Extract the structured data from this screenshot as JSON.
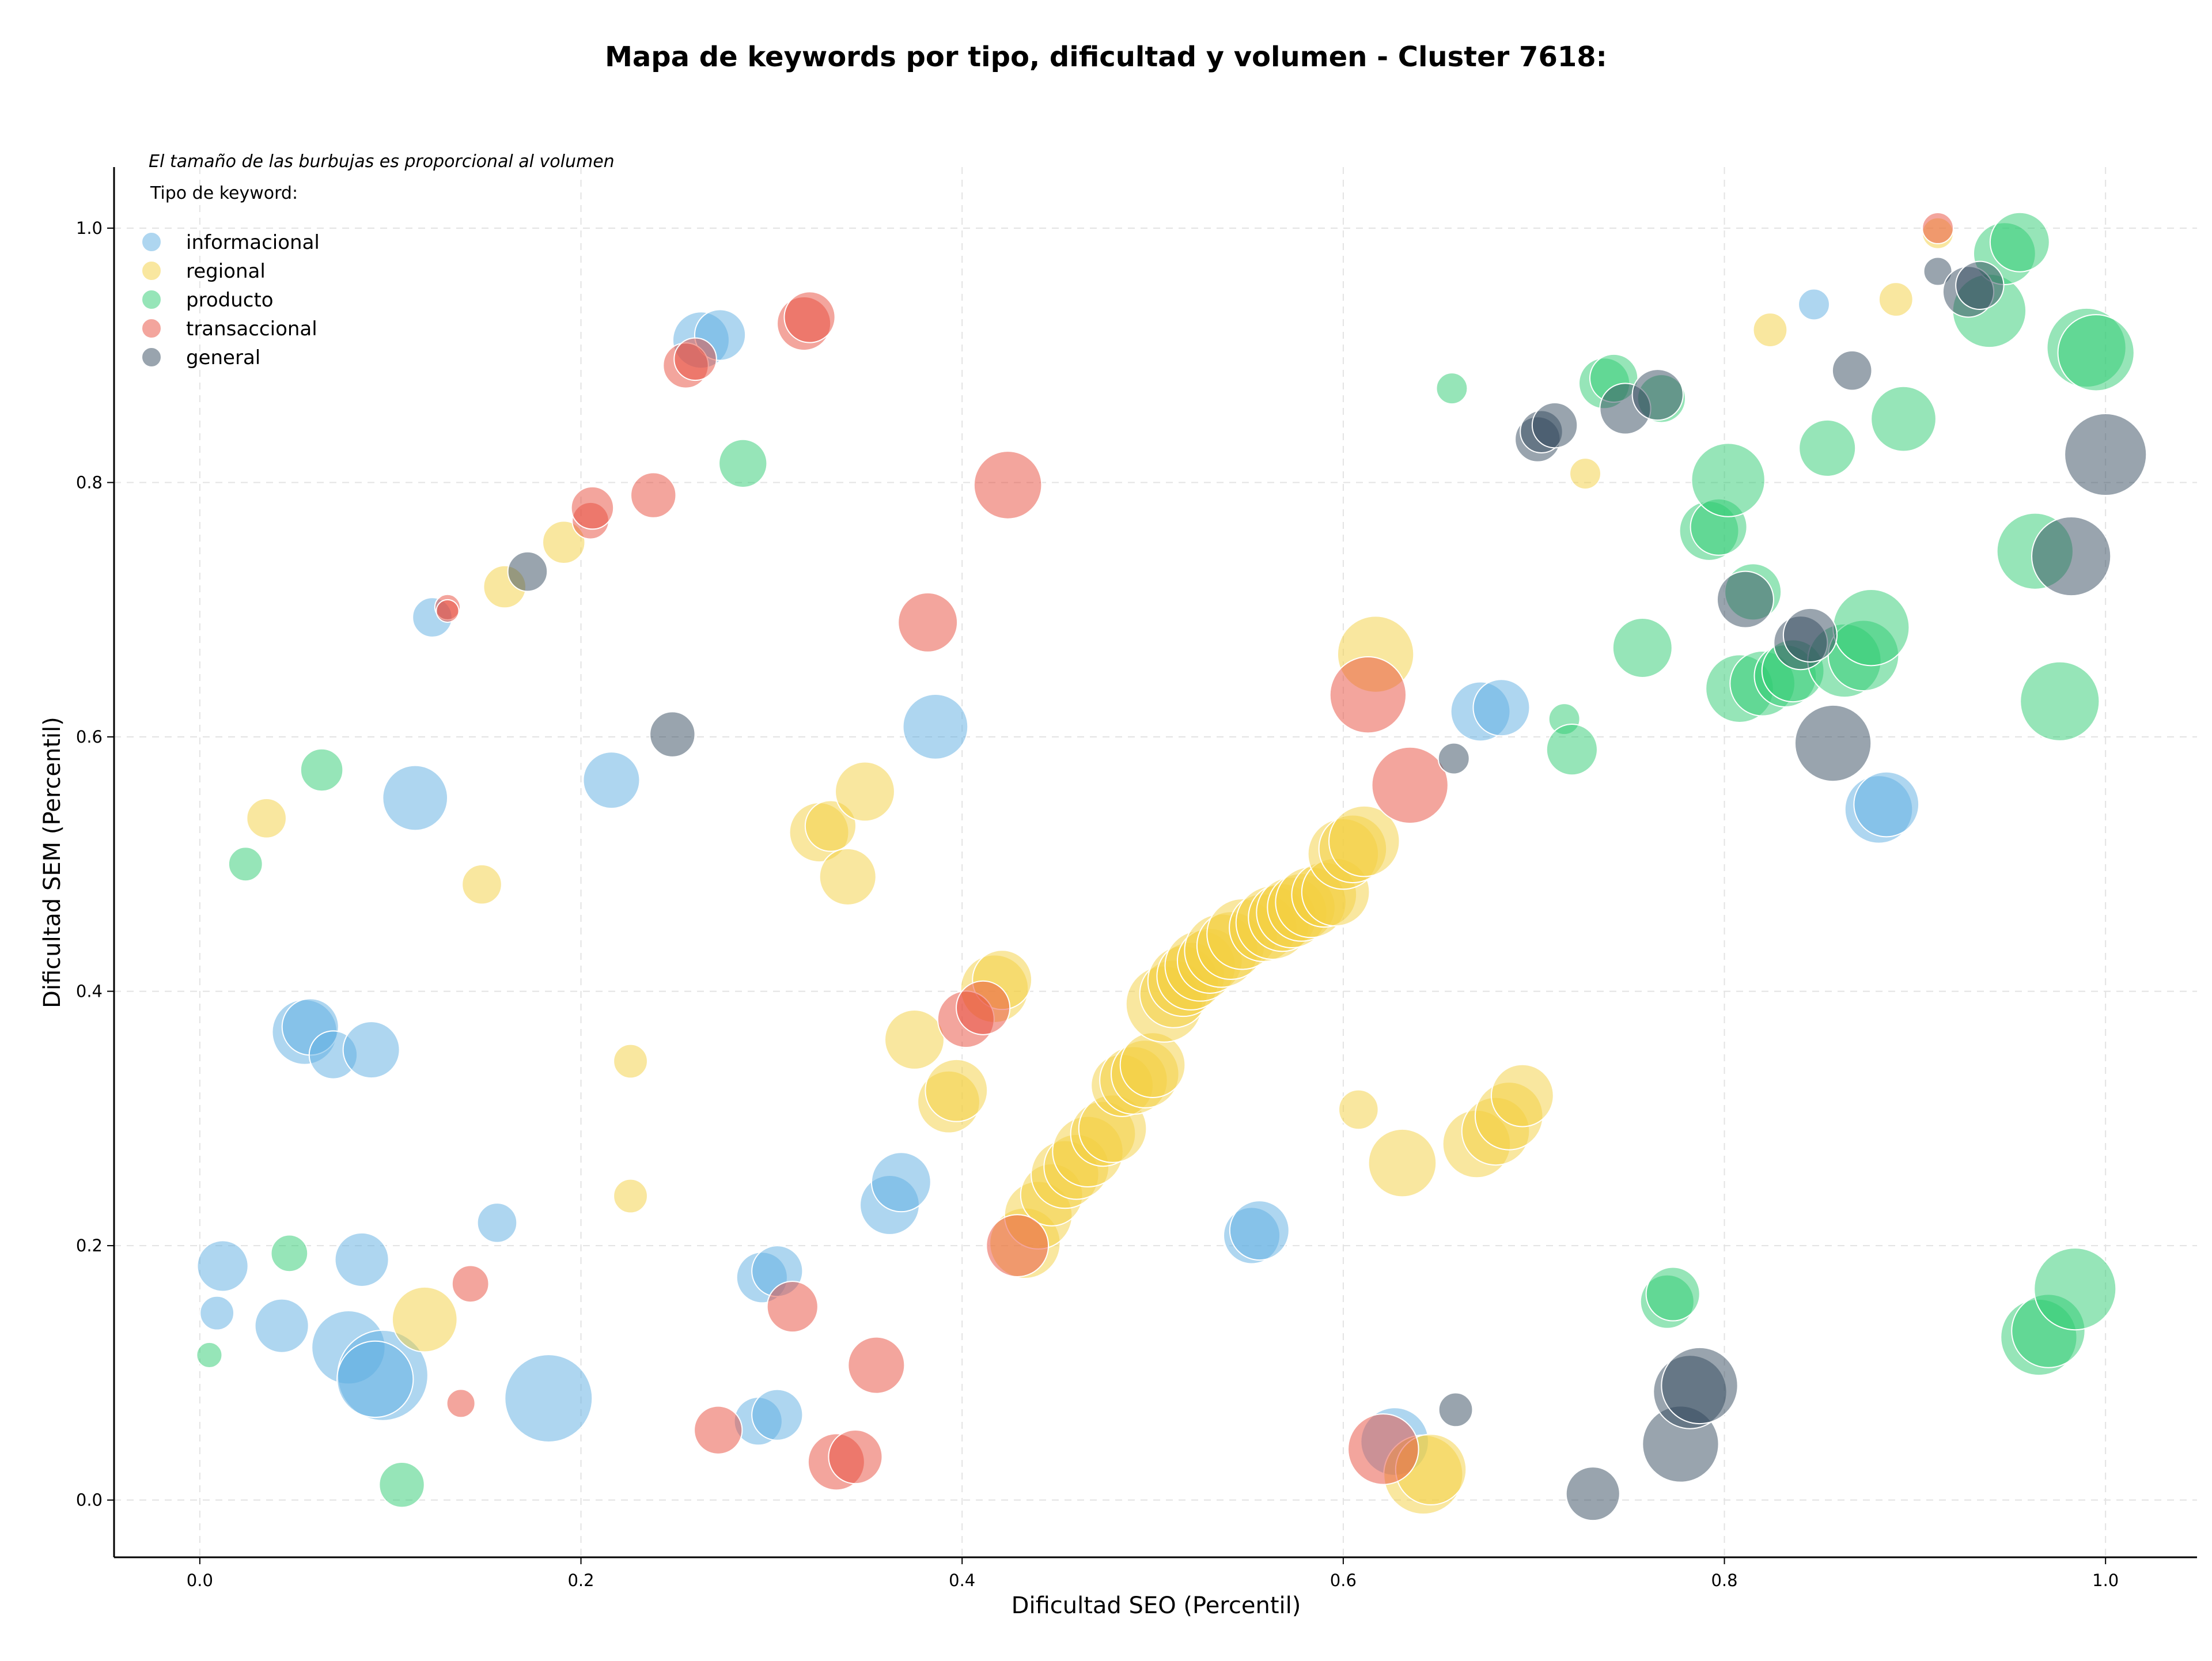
{
  "chart_data": {
    "type": "scatter",
    "title": "Mapa de keywords por tipo, dificultad y volumen - Cluster 7618:",
    "xlabel": "Dificultad SEO (Percentil)",
    "ylabel": "Dificultad SEM (Percentil)",
    "xlim": [
      -0.045,
      1.048
    ],
    "ylim": [
      -0.045,
      1.048
    ],
    "xticks": [
      0.0,
      0.2,
      0.4,
      0.6,
      0.8,
      1.0
    ],
    "yticks": [
      0.0,
      0.2,
      0.4,
      0.6,
      0.8,
      1.0
    ],
    "tick_labels": [
      "0.0",
      "0.2",
      "0.4",
      "0.6",
      "0.8",
      "1.0"
    ],
    "grid": true,
    "legend_placement": "top-left",
    "note": "El tamaño de las burbujas es proporcional al volumen",
    "legend_title": "Tipo de keyword:",
    "series": [
      {
        "name": "informacional",
        "color": "#5DADE2",
        "points": [
          [
            0.012,
            0.184,
            18
          ],
          [
            0.009,
            0.147,
            12
          ],
          [
            0.043,
            0.137,
            19
          ],
          [
            0.085,
            0.189,
            19
          ],
          [
            0.078,
            0.12,
            26
          ],
          [
            0.096,
            0.098,
            32
          ],
          [
            0.092,
            0.095,
            27
          ],
          [
            0.055,
            0.368,
            23
          ],
          [
            0.058,
            0.372,
            20
          ],
          [
            0.07,
            0.35,
            17
          ],
          [
            0.09,
            0.354,
            20
          ],
          [
            0.113,
            0.552,
            23
          ],
          [
            0.156,
            0.218,
            14
          ],
          [
            0.183,
            0.08,
            31
          ],
          [
            0.122,
            0.694,
            14
          ],
          [
            0.263,
            0.912,
            20
          ],
          [
            0.273,
            0.916,
            18
          ],
          [
            0.216,
            0.566,
            20
          ],
          [
            0.295,
            0.175,
            18
          ],
          [
            0.303,
            0.18,
            18
          ],
          [
            0.293,
            0.062,
            17
          ],
          [
            0.303,
            0.067,
            18
          ],
          [
            0.362,
            0.232,
            21
          ],
          [
            0.368,
            0.25,
            21
          ],
          [
            0.386,
            0.608,
            23
          ],
          [
            0.552,
            0.208,
            20
          ],
          [
            0.556,
            0.212,
            21
          ],
          [
            0.627,
            0.046,
            24
          ],
          [
            0.672,
            0.62,
            21
          ],
          [
            0.683,
            0.623,
            20
          ],
          [
            0.847,
            0.94,
            11
          ],
          [
            0.881,
            0.543,
            24
          ],
          [
            0.885,
            0.547,
            23
          ]
        ]
      },
      {
        "name": "regional",
        "color": "#F4D03F",
        "points": [
          [
            0.035,
            0.536,
            14
          ],
          [
            0.148,
            0.484,
            14
          ],
          [
            0.118,
            0.142,
            23
          ],
          [
            0.16,
            0.718,
            15
          ],
          [
            0.191,
            0.753,
            15
          ],
          [
            0.226,
            0.345,
            12
          ],
          [
            0.226,
            0.239,
            12
          ],
          [
            0.325,
            0.525,
            21
          ],
          [
            0.331,
            0.53,
            18
          ],
          [
            0.34,
            0.49,
            20
          ],
          [
            0.349,
            0.557,
            21
          ],
          [
            0.375,
            0.362,
            21
          ],
          [
            0.393,
            0.313,
            22
          ],
          [
            0.397,
            0.322,
            22
          ],
          [
            0.417,
            0.402,
            24
          ],
          [
            0.421,
            0.409,
            21
          ],
          [
            0.433,
            0.202,
            25
          ],
          [
            0.44,
            0.224,
            24
          ],
          [
            0.447,
            0.24,
            22
          ],
          [
            0.454,
            0.256,
            24
          ],
          [
            0.46,
            0.262,
            23
          ],
          [
            0.466,
            0.274,
            25
          ],
          [
            0.474,
            0.288,
            23
          ],
          [
            0.479,
            0.292,
            24
          ],
          [
            0.484,
            0.326,
            22
          ],
          [
            0.49,
            0.33,
            24
          ],
          [
            0.496,
            0.335,
            24
          ],
          [
            0.5,
            0.342,
            23
          ],
          [
            0.506,
            0.39,
            27
          ],
          [
            0.511,
            0.398,
            24
          ],
          [
            0.516,
            0.408,
            25
          ],
          [
            0.52,
            0.412,
            24
          ],
          [
            0.525,
            0.42,
            25
          ],
          [
            0.53,
            0.424,
            23
          ],
          [
            0.536,
            0.432,
            26
          ],
          [
            0.541,
            0.436,
            24
          ],
          [
            0.547,
            0.445,
            25
          ],
          [
            0.558,
            0.45,
            24
          ],
          [
            0.563,
            0.454,
            26
          ],
          [
            0.568,
            0.458,
            24
          ],
          [
            0.573,
            0.462,
            25
          ],
          [
            0.578,
            0.466,
            24
          ],
          [
            0.583,
            0.47,
            25
          ],
          [
            0.59,
            0.476,
            23
          ],
          [
            0.596,
            0.478,
            24
          ],
          [
            0.6,
            0.508,
            25
          ],
          [
            0.605,
            0.512,
            24
          ],
          [
            0.611,
            0.518,
            25
          ],
          [
            0.617,
            0.665,
            27
          ],
          [
            0.608,
            0.307,
            14
          ],
          [
            0.631,
            0.265,
            24
          ],
          [
            0.642,
            0.02,
            28
          ],
          [
            0.646,
            0.024,
            25
          ],
          [
            0.67,
            0.28,
            24
          ],
          [
            0.68,
            0.29,
            24
          ],
          [
            0.687,
            0.302,
            24
          ],
          [
            0.694,
            0.318,
            22
          ],
          [
            0.727,
            0.807,
            11
          ],
          [
            0.824,
            0.92,
            12
          ],
          [
            0.89,
            0.944,
            12
          ],
          [
            0.912,
            0.996,
            11
          ]
        ]
      },
      {
        "name": "producto",
        "color": "#2ECC71",
        "points": [
          [
            0.005,
            0.114,
            9
          ],
          [
            0.024,
            0.5,
            12
          ],
          [
            0.047,
            0.194,
            13
          ],
          [
            0.064,
            0.574,
            15
          ],
          [
            0.106,
            0.012,
            16
          ],
          [
            0.285,
            0.815,
            17
          ],
          [
            0.657,
            0.874,
            11
          ],
          [
            0.716,
            0.614,
            11
          ],
          [
            0.72,
            0.59,
            18
          ],
          [
            0.737,
            0.878,
            18
          ],
          [
            0.742,
            0.882,
            17
          ],
          [
            0.757,
            0.67,
            21
          ],
          [
            0.767,
            0.866,
            17
          ],
          [
            0.77,
            0.156,
            19
          ],
          [
            0.773,
            0.162,
            19
          ],
          [
            0.792,
            0.762,
            21
          ],
          [
            0.797,
            0.765,
            20
          ],
          [
            0.802,
            0.802,
            26
          ],
          [
            0.808,
            0.638,
            24
          ],
          [
            0.815,
            0.714,
            20
          ],
          [
            0.82,
            0.642,
            23
          ],
          [
            0.832,
            0.648,
            22
          ],
          [
            0.836,
            0.652,
            22
          ],
          [
            0.854,
            0.827,
            20
          ],
          [
            0.863,
            0.66,
            26
          ],
          [
            0.873,
            0.664,
            25
          ],
          [
            0.877,
            0.686,
            27
          ],
          [
            0.894,
            0.85,
            23
          ],
          [
            0.939,
            0.935,
            26
          ],
          [
            0.947,
            0.98,
            22
          ],
          [
            0.955,
            0.989,
            21
          ],
          [
            0.963,
            0.746,
            27
          ],
          [
            0.965,
            0.128,
            27
          ],
          [
            0.97,
            0.133,
            26
          ],
          [
            0.976,
            0.628,
            28
          ],
          [
            0.984,
            0.166,
            29
          ],
          [
            0.99,
            0.906,
            28
          ],
          [
            0.995,
            0.902,
            27
          ]
        ]
      },
      {
        "name": "transaccional",
        "color": "#E74C3C",
        "points": [
          [
            0.13,
            0.702,
            9
          ],
          [
            0.13,
            0.699,
            8
          ],
          [
            0.137,
            0.076,
            10
          ],
          [
            0.142,
            0.17,
            13
          ],
          [
            0.205,
            0.77,
            13
          ],
          [
            0.206,
            0.78,
            15
          ],
          [
            0.238,
            0.79,
            16
          ],
          [
            0.255,
            0.892,
            16
          ],
          [
            0.26,
            0.897,
            15
          ],
          [
            0.272,
            0.055,
            17
          ],
          [
            0.311,
            0.152,
            18
          ],
          [
            0.317,
            0.925,
            19
          ],
          [
            0.32,
            0.93,
            18
          ],
          [
            0.334,
            0.03,
            20
          ],
          [
            0.344,
            0.034,
            19
          ],
          [
            0.355,
            0.106,
            20
          ],
          [
            0.382,
            0.69,
            21
          ],
          [
            0.402,
            0.378,
            20
          ],
          [
            0.411,
            0.387,
            19
          ],
          [
            0.424,
            0.798,
            24
          ],
          [
            0.429,
            0.2,
            22
          ],
          [
            0.613,
            0.633,
            27
          ],
          [
            0.635,
            0.562,
            27
          ],
          [
            0.621,
            0.04,
            25
          ],
          [
            0.912,
            1.0,
            11
          ]
        ]
      },
      {
        "name": "general",
        "color": "#34495E",
        "points": [
          [
            0.172,
            0.73,
            14
          ],
          [
            0.248,
            0.602,
            16
          ],
          [
            0.658,
            0.583,
            11
          ],
          [
            0.659,
            0.071,
            12
          ],
          [
            0.702,
            0.834,
            16
          ],
          [
            0.704,
            0.84,
            15
          ],
          [
            0.711,
            0.845,
            16
          ],
          [
            0.731,
            0.005,
            19
          ],
          [
            0.748,
            0.858,
            18
          ],
          [
            0.765,
            0.869,
            18
          ],
          [
            0.777,
            0.044,
            27
          ],
          [
            0.782,
            0.085,
            26
          ],
          [
            0.787,
            0.09,
            27
          ],
          [
            0.811,
            0.708,
            20
          ],
          [
            0.84,
            0.674,
            19
          ],
          [
            0.845,
            0.68,
            19
          ],
          [
            0.857,
            0.595,
            27
          ],
          [
            0.867,
            0.888,
            14
          ],
          [
            0.912,
            0.966,
            10
          ],
          [
            0.928,
            0.95,
            18
          ],
          [
            0.934,
            0.955,
            17
          ],
          [
            0.982,
            0.742,
            28
          ],
          [
            1.0,
            0.822,
            29
          ]
        ]
      }
    ]
  }
}
